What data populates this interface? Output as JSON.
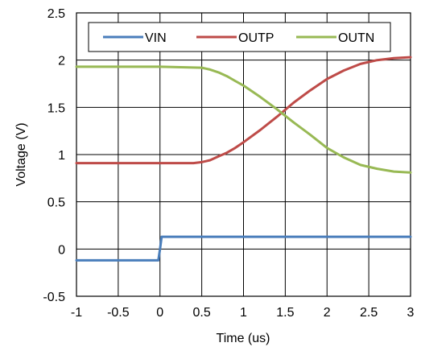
{
  "chart_data": {
    "type": "line",
    "title": "",
    "xlabel": "Time (us)",
    "ylabel": "Voltage (V)",
    "xlim": [
      -1,
      3
    ],
    "ylim": [
      -0.5,
      2.5
    ],
    "xticks": [
      -1,
      -0.5,
      0,
      0.5,
      1,
      1.5,
      2,
      2.5,
      3
    ],
    "xtick_labels": [
      "-1",
      "-0.5",
      "0",
      "0.5",
      "1",
      "1.5",
      "2",
      "2.5",
      "3"
    ],
    "yticks": [
      -0.5,
      0,
      0.5,
      1,
      1.5,
      2,
      2.5
    ],
    "ytick_labels": [
      "-0.5",
      "0",
      "0.5",
      "1",
      "1.5",
      "2",
      "2.5"
    ],
    "grid": true,
    "legend_position": "top",
    "series": [
      {
        "name": "VIN",
        "color": "#4a7ebb",
        "x": [
          -1,
          -0.02,
          0.0,
          0.02,
          3
        ],
        "y": [
          -0.12,
          -0.12,
          0.0,
          0.13,
          0.13
        ]
      },
      {
        "name": "OUTP",
        "color": "#be4b48",
        "x": [
          -1,
          0.0,
          0.4,
          0.5,
          0.6,
          0.7,
          0.8,
          0.9,
          1.0,
          1.2,
          1.4,
          1.6,
          1.8,
          2.0,
          2.2,
          2.4,
          2.6,
          2.8,
          3.0
        ],
        "y": [
          0.91,
          0.91,
          0.91,
          0.92,
          0.94,
          0.98,
          1.02,
          1.07,
          1.13,
          1.26,
          1.4,
          1.55,
          1.68,
          1.8,
          1.89,
          1.96,
          2.0,
          2.02,
          2.03
        ]
      },
      {
        "name": "OUTN",
        "color": "#98b954",
        "x": [
          -1,
          0.0,
          0.5,
          0.6,
          0.7,
          0.8,
          0.9,
          1.0,
          1.2,
          1.4,
          1.6,
          1.8,
          2.0,
          2.2,
          2.4,
          2.6,
          2.8,
          3.0
        ],
        "y": [
          1.93,
          1.93,
          1.92,
          1.9,
          1.87,
          1.83,
          1.78,
          1.73,
          1.61,
          1.48,
          1.34,
          1.21,
          1.07,
          0.97,
          0.89,
          0.85,
          0.82,
          0.81
        ]
      }
    ]
  }
}
